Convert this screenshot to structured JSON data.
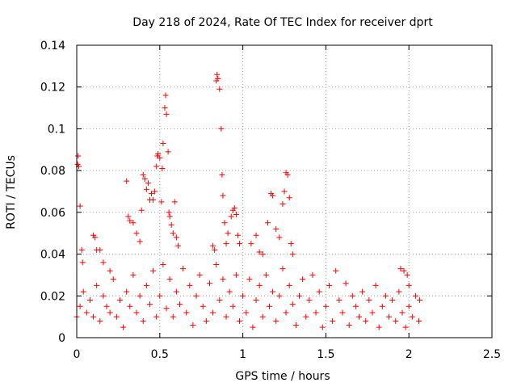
{
  "chart_data": {
    "type": "scatter",
    "title": "Day 218 of 2024, Rate Of TEC Index for receiver dprt",
    "xlabel": "GPS time / hours",
    "ylabel": "ROTI / TECUs",
    "xlim": [
      0,
      2.5
    ],
    "ylim": [
      0,
      0.14
    ],
    "xticks": [
      0,
      0.5,
      1,
      1.5,
      2,
      2.5
    ],
    "xtick_labels": [
      "0",
      "0.5",
      "1",
      "1.5",
      "2",
      "2.5"
    ],
    "yticks": [
      0,
      0.02,
      0.04,
      0.06,
      0.08,
      0.1,
      0.12,
      0.14
    ],
    "ytick_labels": [
      "0",
      "0.02",
      "0.04",
      "0.06",
      "0.08",
      "0.1",
      "0.12",
      "0.14"
    ],
    "grid": true,
    "marker": "+",
    "series": [
      {
        "name": "ROTI",
        "color": "#ff0000",
        "points": [
          [
            0.005,
            0.083
          ],
          [
            0.008,
            0.087
          ],
          [
            0.012,
            0.082
          ],
          [
            0.02,
            0.063
          ],
          [
            0.03,
            0.042
          ],
          [
            0.035,
            0.036
          ],
          [
            0.1,
            0.049
          ],
          [
            0.11,
            0.048
          ],
          [
            0.12,
            0.042
          ],
          [
            0.14,
            0.042
          ],
          [
            0.16,
            0.036
          ],
          [
            0.2,
            0.032
          ],
          [
            0.3,
            0.075
          ],
          [
            0.31,
            0.058
          ],
          [
            0.32,
            0.056
          ],
          [
            0.34,
            0.055
          ],
          [
            0.36,
            0.05
          ],
          [
            0.38,
            0.046
          ],
          [
            0.39,
            0.061
          ],
          [
            0.4,
            0.078
          ],
          [
            0.41,
            0.076
          ],
          [
            0.42,
            0.071
          ],
          [
            0.43,
            0.074
          ],
          [
            0.44,
            0.066
          ],
          [
            0.45,
            0.069
          ],
          [
            0.46,
            0.066
          ],
          [
            0.47,
            0.07
          ],
          [
            0.48,
            0.082
          ],
          [
            0.485,
            0.087
          ],
          [
            0.49,
            0.088
          ],
          [
            0.5,
            0.086
          ],
          [
            0.51,
            0.065
          ],
          [
            0.515,
            0.081
          ],
          [
            0.52,
            0.093
          ],
          [
            0.53,
            0.11
          ],
          [
            0.535,
            0.116
          ],
          [
            0.54,
            0.107
          ],
          [
            0.55,
            0.089
          ],
          [
            0.555,
            0.06
          ],
          [
            0.56,
            0.058
          ],
          [
            0.57,
            0.054
          ],
          [
            0.58,
            0.05
          ],
          [
            0.59,
            0.065
          ],
          [
            0.6,
            0.048
          ],
          [
            0.61,
            0.044
          ],
          [
            0.82,
            0.044
          ],
          [
            0.83,
            0.042
          ],
          [
            0.84,
            0.123
          ],
          [
            0.845,
            0.126
          ],
          [
            0.85,
            0.124
          ],
          [
            0.86,
            0.119
          ],
          [
            0.87,
            0.1
          ],
          [
            0.875,
            0.078
          ],
          [
            0.88,
            0.068
          ],
          [
            0.89,
            0.055
          ],
          [
            0.9,
            0.045
          ],
          [
            0.91,
            0.05
          ],
          [
            0.93,
            0.058
          ],
          [
            0.94,
            0.061
          ],
          [
            0.95,
            0.062
          ],
          [
            0.96,
            0.059
          ],
          [
            0.97,
            0.049
          ],
          [
            0.98,
            0.045
          ],
          [
            1.05,
            0.045
          ],
          [
            1.08,
            0.049
          ],
          [
            1.1,
            0.041
          ],
          [
            1.12,
            0.04
          ],
          [
            1.15,
            0.055
          ],
          [
            1.17,
            0.069
          ],
          [
            1.18,
            0.068
          ],
          [
            1.2,
            0.052
          ],
          [
            1.22,
            0.048
          ],
          [
            1.24,
            0.064
          ],
          [
            1.25,
            0.07
          ],
          [
            1.26,
            0.079
          ],
          [
            1.27,
            0.078
          ],
          [
            1.28,
            0.067
          ],
          [
            1.29,
            0.045
          ],
          [
            1.3,
            0.04
          ],
          [
            1.95,
            0.033
          ],
          [
            1.97,
            0.032
          ],
          [
            1.99,
            0.03
          ],
          [
            2.0,
            0.025
          ],
          [
            0.0,
            0.01
          ],
          [
            0.02,
            0.015
          ],
          [
            0.04,
            0.022
          ],
          [
            0.06,
            0.012
          ],
          [
            0.08,
            0.018
          ],
          [
            0.1,
            0.01
          ],
          [
            0.12,
            0.025
          ],
          [
            0.14,
            0.008
          ],
          [
            0.16,
            0.02
          ],
          [
            0.18,
            0.015
          ],
          [
            0.2,
            0.012
          ],
          [
            0.22,
            0.028
          ],
          [
            0.24,
            0.01
          ],
          [
            0.26,
            0.018
          ],
          [
            0.28,
            0.005
          ],
          [
            0.3,
            0.022
          ],
          [
            0.32,
            0.015
          ],
          [
            0.34,
            0.03
          ],
          [
            0.36,
            0.012
          ],
          [
            0.38,
            0.02
          ],
          [
            0.4,
            0.008
          ],
          [
            0.42,
            0.025
          ],
          [
            0.44,
            0.016
          ],
          [
            0.46,
            0.032
          ],
          [
            0.48,
            0.01
          ],
          [
            0.5,
            0.02
          ],
          [
            0.52,
            0.035
          ],
          [
            0.54,
            0.014
          ],
          [
            0.56,
            0.028
          ],
          [
            0.58,
            0.01
          ],
          [
            0.6,
            0.022
          ],
          [
            0.62,
            0.016
          ],
          [
            0.64,
            0.033
          ],
          [
            0.66,
            0.012
          ],
          [
            0.68,
            0.025
          ],
          [
            0.7,
            0.006
          ],
          [
            0.72,
            0.02
          ],
          [
            0.74,
            0.03
          ],
          [
            0.76,
            0.015
          ],
          [
            0.78,
            0.008
          ],
          [
            0.8,
            0.026
          ],
          [
            0.82,
            0.012
          ],
          [
            0.84,
            0.035
          ],
          [
            0.86,
            0.018
          ],
          [
            0.88,
            0.028
          ],
          [
            0.9,
            0.01
          ],
          [
            0.92,
            0.022
          ],
          [
            0.94,
            0.015
          ],
          [
            0.96,
            0.03
          ],
          [
            0.98,
            0.008
          ],
          [
            1.0,
            0.02
          ],
          [
            1.02,
            0.012
          ],
          [
            1.04,
            0.028
          ],
          [
            1.06,
            0.005
          ],
          [
            1.08,
            0.018
          ],
          [
            1.1,
            0.025
          ],
          [
            1.12,
            0.01
          ],
          [
            1.14,
            0.03
          ],
          [
            1.16,
            0.015
          ],
          [
            1.18,
            0.022
          ],
          [
            1.2,
            0.008
          ],
          [
            1.22,
            0.02
          ],
          [
            1.24,
            0.033
          ],
          [
            1.26,
            0.012
          ],
          [
            1.28,
            0.025
          ],
          [
            1.3,
            0.016
          ],
          [
            1.32,
            0.006
          ],
          [
            1.34,
            0.02
          ],
          [
            1.36,
            0.028
          ],
          [
            1.38,
            0.01
          ],
          [
            1.4,
            0.018
          ],
          [
            1.42,
            0.03
          ],
          [
            1.44,
            0.012
          ],
          [
            1.46,
            0.022
          ],
          [
            1.48,
            0.005
          ],
          [
            1.5,
            0.015
          ],
          [
            1.52,
            0.025
          ],
          [
            1.54,
            0.008
          ],
          [
            1.56,
            0.032
          ],
          [
            1.58,
            0.018
          ],
          [
            1.6,
            0.012
          ],
          [
            1.62,
            0.026
          ],
          [
            1.64,
            0.006
          ],
          [
            1.66,
            0.02
          ],
          [
            1.68,
            0.015
          ],
          [
            1.7,
            0.01
          ],
          [
            1.72,
            0.022
          ],
          [
            1.74,
            0.008
          ],
          [
            1.76,
            0.018
          ],
          [
            1.78,
            0.012
          ],
          [
            1.8,
            0.025
          ],
          [
            1.82,
            0.005
          ],
          [
            1.84,
            0.015
          ],
          [
            1.86,
            0.02
          ],
          [
            1.88,
            0.01
          ],
          [
            1.9,
            0.018
          ],
          [
            1.92,
            0.008
          ],
          [
            1.94,
            0.022
          ],
          [
            1.96,
            0.012
          ],
          [
            1.98,
            0.005
          ],
          [
            2.0,
            0.015
          ],
          [
            2.02,
            0.01
          ],
          [
            2.04,
            0.02
          ],
          [
            2.06,
            0.008
          ],
          [
            2.065,
            0.018
          ]
        ]
      }
    ]
  }
}
